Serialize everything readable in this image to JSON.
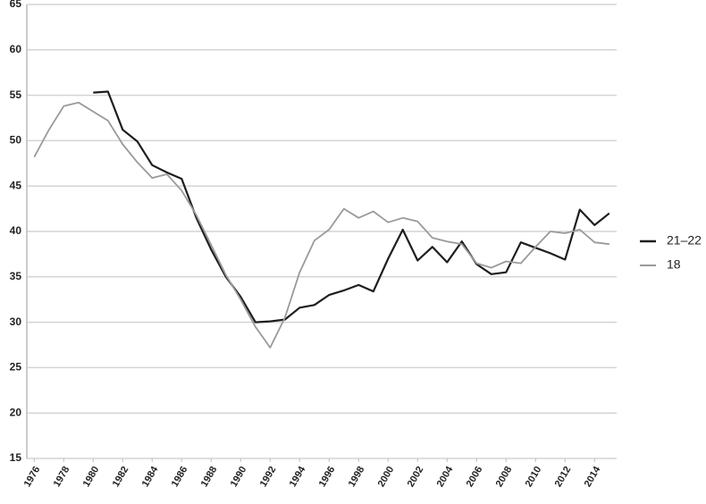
{
  "chart_data": {
    "type": "line",
    "x": [
      1976,
      1977,
      1978,
      1979,
      1980,
      1981,
      1982,
      1983,
      1984,
      1985,
      1986,
      1987,
      1988,
      1989,
      1990,
      1991,
      1992,
      1993,
      1994,
      1995,
      1996,
      1997,
      1998,
      1999,
      2000,
      2001,
      2002,
      2003,
      2004,
      2005,
      2006,
      2007,
      2008,
      2009,
      2010,
      2011,
      2012,
      2013,
      2014,
      2015
    ],
    "series": [
      {
        "name": "21–22",
        "color": "#1e1e1e",
        "values": [
          null,
          null,
          null,
          null,
          55.3,
          55.4,
          51.2,
          49.9,
          47.3,
          46.5,
          45.8,
          41.5,
          38.0,
          35.0,
          32.8,
          30.0,
          30.1,
          30.3,
          31.6,
          31.9,
          33.0,
          33.5,
          34.1,
          33.4,
          37.0,
          40.2,
          36.8,
          38.3,
          36.6,
          38.9,
          36.4,
          35.3,
          35.5,
          38.8,
          38.2,
          37.6,
          36.9,
          42.4,
          40.7,
          42.0
        ]
      },
      {
        "name": "18",
        "color": "#9a9a9a",
        "values": [
          48.2,
          51.2,
          53.8,
          54.2,
          53.2,
          52.2,
          49.6,
          47.6,
          45.9,
          46.3,
          44.5,
          41.8,
          38.5,
          35.2,
          32.5,
          29.5,
          27.2,
          30.5,
          35.5,
          39.0,
          40.2,
          42.5,
          41.5,
          42.2,
          41.0,
          41.5,
          41.1,
          39.3,
          38.9,
          38.6,
          36.5,
          36.0,
          36.7,
          36.5,
          38.3,
          40.0,
          39.8,
          40.2,
          38.8,
          38.6
        ]
      }
    ],
    "xlim": [
      1975.5,
      2015.5
    ],
    "xticks": [
      1976,
      1978,
      1980,
      1982,
      1984,
      1986,
      1988,
      1990,
      1992,
      1994,
      1996,
      1998,
      2000,
      2002,
      2004,
      2006,
      2008,
      2010,
      2012,
      2014
    ],
    "ylim": [
      15,
      65
    ],
    "yticks": [
      15,
      20,
      25,
      30,
      35,
      40,
      45,
      50,
      55,
      60,
      65
    ],
    "grid": true,
    "legend": "right"
  }
}
